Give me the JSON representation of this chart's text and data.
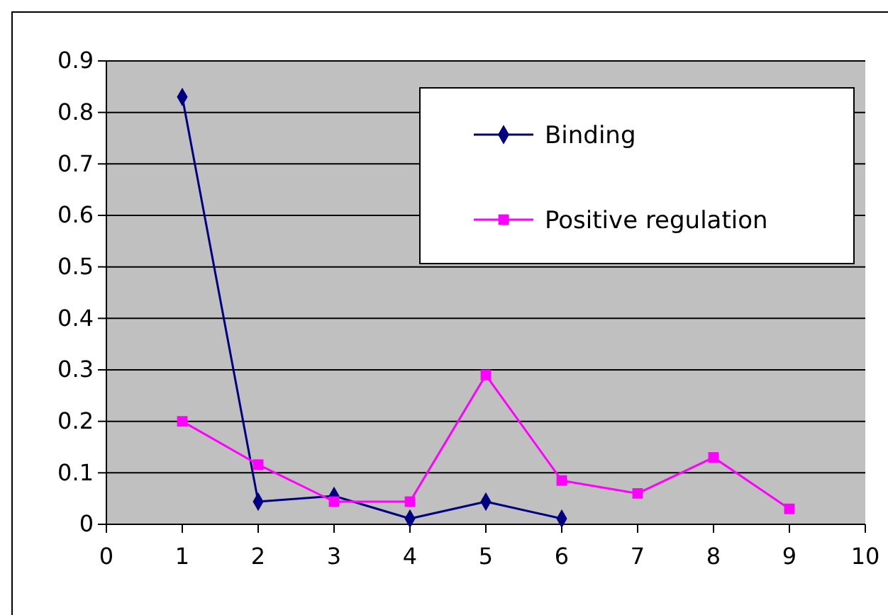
{
  "chart_data": {
    "type": "line",
    "x": [
      1,
      2,
      3,
      4,
      5,
      6,
      7,
      8,
      9
    ],
    "series": [
      {
        "name": "Binding",
        "color": "#000080",
        "marker": "diamond",
        "values": [
          0.83,
          0.044,
          0.055,
          0.011,
          0.044,
          0.011,
          null,
          null,
          null
        ]
      },
      {
        "name": "Positive regulation",
        "color": "#ff00ff",
        "marker": "square",
        "values": [
          0.2,
          0.116,
          0.044,
          0.044,
          0.29,
          0.085,
          0.06,
          0.13,
          0.03
        ]
      }
    ],
    "xlim": [
      0,
      10
    ],
    "xticks": [
      0,
      1,
      2,
      3,
      4,
      5,
      6,
      7,
      8,
      9,
      10
    ],
    "ylim": [
      0,
      0.9
    ],
    "yticks": [
      0,
      0.1,
      0.2,
      0.3,
      0.4,
      0.5,
      0.6,
      0.7,
      0.8,
      0.9
    ],
    "grid": "y",
    "legend": "top right"
  }
}
